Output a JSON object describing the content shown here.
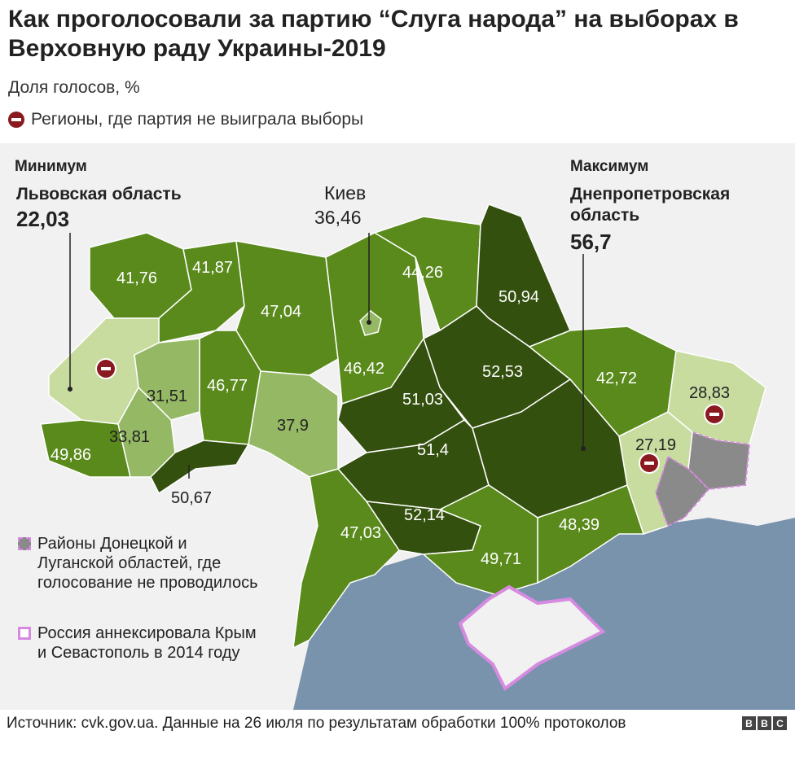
{
  "header": {
    "title": "Как проголосовали за партию “Слуга народа” на выборах в Верховную раду Украины-2019",
    "subtitle": "Доля голосов, %",
    "legend_no_win": "Регионы, где партия не выиграла выборы"
  },
  "callouts": {
    "min": {
      "head": "Минимум",
      "name": "Львовская область",
      "value": "22,03"
    },
    "max": {
      "head": "Максимум",
      "name": "Днепропетровская область",
      "value": "56,7"
    },
    "kiev": {
      "name": "Киев",
      "value": "36,46"
    }
  },
  "regions": [
    {
      "id": "volyn",
      "value": "41,76"
    },
    {
      "id": "rivne",
      "value": "41,87"
    },
    {
      "id": "zhytomyr",
      "value": "47,04"
    },
    {
      "id": "kyiv-oblast",
      "value": "46,42"
    },
    {
      "id": "chernihiv",
      "value": "44,26"
    },
    {
      "id": "sumy",
      "value": "50,94"
    },
    {
      "id": "poltava",
      "value": "52,53"
    },
    {
      "id": "kharkiv",
      "value": "42,72"
    },
    {
      "id": "luhansk",
      "value": "28,83"
    },
    {
      "id": "donetsk",
      "value": "27,19"
    },
    {
      "id": "ternopil",
      "value": "31,51"
    },
    {
      "id": "khmelnytskyi",
      "value": "46,77"
    },
    {
      "id": "vinnytsia",
      "value": "37,9"
    },
    {
      "id": "cherkasy",
      "value": "51,03"
    },
    {
      "id": "kirovohrad",
      "value": "51,4"
    },
    {
      "id": "zakarpattia",
      "value": "49,86"
    },
    {
      "id": "ivano-frankivsk",
      "value": "33,81"
    },
    {
      "id": "chernivtsi",
      "value": "50,67"
    },
    {
      "id": "odesa",
      "value": "47,03"
    },
    {
      "id": "mykolaiv",
      "value": "52,14"
    },
    {
      "id": "zaporizhzhia",
      "value": "48,39"
    },
    {
      "id": "kherson",
      "value": "49,71"
    }
  ],
  "legend": {
    "no_vote": "Районы Донецкой и Луганской областей, где голосование не проводилось",
    "annexed": "Россия аннексировала Крым и Севастополь в 2014 году"
  },
  "colors": {
    "dark": "#34500f",
    "mid": "#5a8a1c",
    "light": "#94b864",
    "pale": "#c8dca0",
    "grey": "#8a8a8a",
    "sea": "#7a93ad",
    "marker": "#8a1a1f",
    "annex_border": "#d68ae0"
  },
  "footer": {
    "source": "Источник: cvk.gov.ua. Данные на 26 июля по результатам обработки 100% протоколов"
  },
  "brand": [
    "B",
    "B",
    "C"
  ]
}
